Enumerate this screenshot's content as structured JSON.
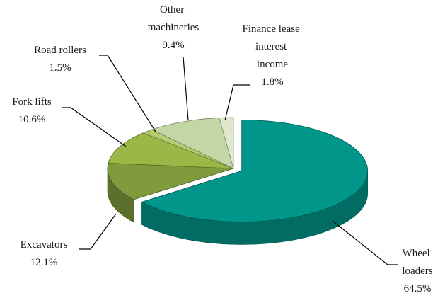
{
  "chart_data": {
    "type": "pie3d",
    "categories": [
      "Wheel loaders",
      "Excavators",
      "Fork lifts",
      "Road rollers",
      "Other machineries",
      "Finance lease interest income"
    ],
    "values": [
      64.5,
      12.1,
      10.6,
      1.5,
      9.4,
      1.8
    ],
    "value_labels": [
      "64.5%",
      "12.1%",
      "10.6%",
      "1.5%",
      "9.4%",
      "1.8%"
    ],
    "colors": [
      "#00968a",
      "#7f9b3e",
      "#9ab846",
      "#b3cc6e",
      "#c3d6a6",
      "#dfe8cc"
    ],
    "exploded": [
      true,
      false,
      false,
      false,
      false,
      false
    ]
  }
}
